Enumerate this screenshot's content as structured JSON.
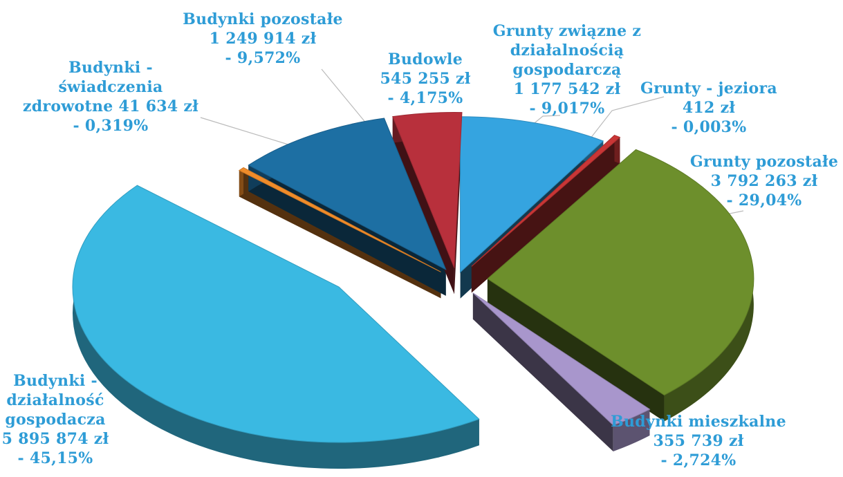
{
  "chart_data": {
    "type": "pie",
    "variant": "3d-exploded",
    "title": "",
    "label_color": "#2e9cd6",
    "leader_line_color": "#bbbbbb",
    "slices": [
      {
        "key": "grunty-zwiazane",
        "category": "Grunty związne z działalnością gospodarczą",
        "value_label": "1 177 542 zł",
        "percent_label": "- 9,017%",
        "percent": 9.017,
        "value": 1177542,
        "color": "#35a4e0",
        "label_lines": [
          "Grunty związne z",
          "działalnością",
          "gospodarczą",
          "1 177 542 zł",
          "- 9,017%"
        ]
      },
      {
        "key": "grunty-jeziora",
        "category": "Grunty - jeziora",
        "value_label": "412 zł",
        "percent_label": "- 0,003%",
        "percent": 0.003,
        "value": 412,
        "color": "#c93636",
        "label_lines": [
          "Grunty - jeziora",
          "412 zł",
          "- 0,003%"
        ]
      },
      {
        "key": "grunty-pozostale",
        "category": "Grunty pozostałe",
        "value_label": "3 792 263 zł",
        "percent_label": "- 29,04%",
        "percent": 29.04,
        "value": 3792263,
        "color": "#6d8f2c",
        "label_lines": [
          "Grunty pozostałe",
          "3 792 263 zł",
          "- 29,04%"
        ]
      },
      {
        "key": "budynki-mieszkalne",
        "category": "Budynki mieszkalne",
        "value_label": "355 739 zł",
        "percent_label": "- 2,724%",
        "percent": 2.724,
        "value": 355739,
        "color": "#a896cc",
        "label_lines": [
          "Budynki mieszkalne",
          "355 739 zł",
          "- 2,724%"
        ]
      },
      {
        "key": "budynki-dzialalnosc",
        "category": "Budynki - działalność gospodacza",
        "value_label": "5 895 874 zł",
        "percent_label": "-  45,15%",
        "percent": 45.15,
        "value": 5895874,
        "color": "#3ab9e2",
        "label_lines": [
          "Budynki -",
          "działalność",
          "gospodacza",
          "5 895 874 zł",
          "-  45,15%"
        ]
      },
      {
        "key": "budynki-swiadczenia",
        "category": "Budynki - świadczenia zdrowotne",
        "value_label": "41 634 zł",
        "percent_label": "- 0,319%",
        "percent": 0.319,
        "value": 41634,
        "color": "#f08c2a",
        "label_lines": [
          "Budynki -",
          "świadczenia",
          "zdrowotne  41 634 zł",
          "- 0,319%"
        ]
      },
      {
        "key": "budynki-pozostale",
        "category": "Budynki pozostałe",
        "value_label": "1 249 914 zł",
        "percent_label": "- 9,572%",
        "percent": 9.572,
        "value": 1249914,
        "color": "#1d6fa3",
        "label_lines": [
          "Budynki pozostałe",
          "1 249 914 zł",
          "- 9,572%"
        ]
      },
      {
        "key": "budowle",
        "category": "Budowle",
        "value_label": "545 255  zł",
        "percent_label": "- 4,175%",
        "percent": 4.175,
        "value": 545255,
        "color": "#b8303c",
        "label_lines": [
          "Budowle",
          "545 255  zł",
          "- 4,175%"
        ]
      }
    ]
  }
}
